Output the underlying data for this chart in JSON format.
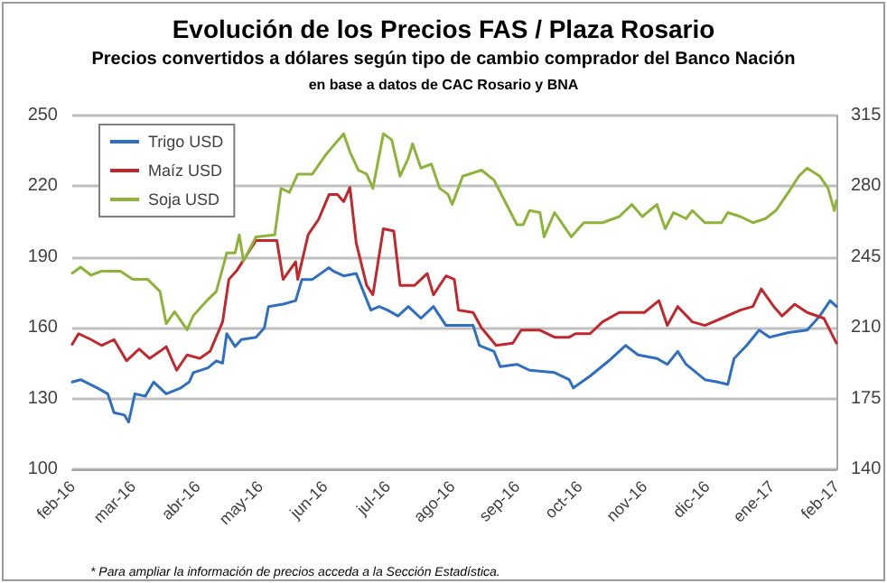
{
  "chart_data": {
    "type": "line",
    "title": "Evolución de los Precios FAS / Plaza Rosario",
    "subtitle": "Precios convertidos a dólares según tipo de cambio comprador del Banco Nación",
    "annotations": [
      "en base a datos de CAC Rosario y BNA",
      "* Para ampliar la información de precios acceda a la Sección Estadística."
    ],
    "xlim": [
      "2016-02-01",
      "2017-02-01"
    ],
    "xticks": [
      {
        "value": "2016-02-01",
        "label": "feb-16"
      },
      {
        "value": "2016-03-01",
        "label": "mar-16"
      },
      {
        "value": "2016-04-01",
        "label": "abr-16"
      },
      {
        "value": "2016-05-01",
        "label": "may-16"
      },
      {
        "value": "2016-06-01",
        "label": "jun-16"
      },
      {
        "value": "2016-07-01",
        "label": "jul-16"
      },
      {
        "value": "2016-08-01",
        "label": "ago-16"
      },
      {
        "value": "2016-09-01",
        "label": "sep-16"
      },
      {
        "value": "2016-10-01",
        "label": "oct-16"
      },
      {
        "value": "2016-11-01",
        "label": "nov-16"
      },
      {
        "value": "2016-12-01",
        "label": "dic-16"
      },
      {
        "value": "2017-01-01",
        "label": "ene-17"
      },
      {
        "value": "2017-02-01",
        "label": "feb-17"
      }
    ],
    "ylim": [
      100,
      250
    ],
    "yticks": [
      100,
      130,
      160,
      190,
      220,
      250
    ],
    "y2lim": [
      140,
      315
    ],
    "y2ticks": [
      140,
      175,
      210,
      245,
      280,
      315
    ],
    "grid": "y",
    "legend": "top left",
    "marker": "none",
    "line_style": "solid",
    "series": [
      {
        "name": "Trigo USD",
        "color": "#2e6fbf",
        "x": [
          "2016-02-01",
          "2016-02-05",
          "2016-02-13",
          "2016-02-18",
          "2016-02-21",
          "2016-02-26",
          "2016-02-28",
          "2016-03-02",
          "2016-03-07",
          "2016-03-11",
          "2016-03-17",
          "2016-03-24",
          "2016-03-28",
          "2016-03-30",
          "2016-04-06",
          "2016-04-10",
          "2016-04-13",
          "2016-04-15",
          "2016-04-19",
          "2016-04-22",
          "2016-04-29",
          "2016-05-03",
          "2016-05-05",
          "2016-05-12",
          "2016-05-18",
          "2016-05-21",
          "2016-05-26",
          "2016-06-03",
          "2016-06-05",
          "2016-06-10",
          "2016-06-16",
          "2016-06-23",
          "2016-06-27",
          "2016-07-01",
          "2016-07-06",
          "2016-07-11",
          "2016-07-17",
          "2016-07-23",
          "2016-07-29",
          "2016-08-04",
          "2016-08-11",
          "2016-08-14",
          "2016-08-21",
          "2016-08-24",
          "2016-09-01",
          "2016-09-07",
          "2016-09-19",
          "2016-09-26",
          "2016-09-28",
          "2016-10-06",
          "2016-10-15",
          "2016-10-23",
          "2016-10-29",
          "2016-11-07",
          "2016-11-12",
          "2016-11-17",
          "2016-11-21",
          "2016-11-30",
          "2016-12-06",
          "2016-12-11",
          "2016-12-14",
          "2016-12-20",
          "2016-12-26",
          "2016-12-31",
          "2017-01-09",
          "2017-01-18",
          "2017-01-24",
          "2017-01-29",
          "2017-02-01"
        ],
        "values": [
          137,
          138,
          134.5,
          132,
          124,
          123,
          120,
          132,
          131,
          137,
          132,
          134.5,
          137,
          141,
          143,
          146,
          145,
          157.5,
          152,
          155,
          156,
          160,
          169,
          170,
          171.5,
          180.5,
          180.5,
          185.5,
          184,
          182,
          183,
          167.5,
          169,
          167.5,
          165,
          169,
          164,
          169,
          161,
          161,
          161,
          152.5,
          150,
          143.5,
          144.5,
          142,
          141,
          138,
          134.5,
          139.5,
          146,
          152.5,
          148.5,
          147,
          144.5,
          150,
          144.5,
          138,
          137,
          136,
          147,
          152.5,
          159,
          156,
          158,
          159,
          165,
          171.5,
          169
        ]
      },
      {
        "name": "Maíz USD",
        "color": "#c0282d",
        "x": [
          "2016-02-01",
          "2016-02-04",
          "2016-02-10",
          "2016-02-15",
          "2016-02-21",
          "2016-02-27",
          "2016-03-04",
          "2016-03-09",
          "2016-03-14",
          "2016-03-17",
          "2016-03-22",
          "2016-03-27",
          "2016-04-02",
          "2016-04-07",
          "2016-04-13",
          "2016-04-16",
          "2016-04-20",
          "2016-04-29",
          "2016-05-09",
          "2016-05-12",
          "2016-05-18",
          "2016-05-19",
          "2016-05-24",
          "2016-05-29",
          "2016-06-03",
          "2016-06-07",
          "2016-06-10",
          "2016-06-13",
          "2016-06-16",
          "2016-06-21",
          "2016-06-24",
          "2016-06-29",
          "2016-07-04",
          "2016-07-07",
          "2016-07-14",
          "2016-07-20",
          "2016-07-23",
          "2016-07-29",
          "2016-08-02",
          "2016-08-04",
          "2016-08-11",
          "2016-08-15",
          "2016-08-22",
          "2016-08-30",
          "2016-09-03",
          "2016-09-12",
          "2016-09-19",
          "2016-09-26",
          "2016-09-29",
          "2016-10-06",
          "2016-10-12",
          "2016-10-20",
          "2016-11-01",
          "2016-11-08",
          "2016-11-12",
          "2016-11-17",
          "2016-11-24",
          "2016-11-30",
          "2016-12-08",
          "2016-12-17",
          "2016-12-23",
          "2016-12-27",
          "2017-01-02",
          "2017-01-06",
          "2017-01-12",
          "2017-01-18",
          "2017-01-26",
          "2017-02-01"
        ],
        "values": [
          153,
          157.5,
          155,
          152.5,
          155,
          146,
          151,
          147,
          150,
          152,
          142,
          148.5,
          147,
          150,
          162.5,
          180.5,
          184.5,
          197,
          197,
          180.5,
          188,
          180.5,
          199.5,
          206,
          216.5,
          216.5,
          213.5,
          219.5,
          196,
          178,
          174,
          202,
          201,
          178,
          178,
          183,
          174,
          182,
          180.5,
          167.5,
          166.5,
          160,
          152.5,
          153.5,
          159,
          159,
          156,
          156,
          157.5,
          157.5,
          162.5,
          166.5,
          166.5,
          171.5,
          161,
          169,
          162.5,
          161,
          164,
          167.5,
          169,
          176.5,
          169,
          165,
          170,
          166.5,
          164,
          153.5
        ]
      },
      {
        "name": "Soja USD",
        "color": "#8db33a",
        "axis": "y2",
        "x": [
          "2016-02-01",
          "2016-02-05",
          "2016-02-10",
          "2016-02-15",
          "2016-02-24",
          "2016-03-01",
          "2016-03-08",
          "2016-03-14",
          "2016-03-17",
          "2016-03-21",
          "2016-03-27",
          "2016-03-30",
          "2016-04-06",
          "2016-04-10",
          "2016-04-15",
          "2016-04-19",
          "2016-04-21",
          "2016-04-23",
          "2016-04-29",
          "2016-05-08",
          "2016-05-11",
          "2016-05-15",
          "2016-05-19",
          "2016-05-26",
          "2016-06-01",
          "2016-06-05",
          "2016-06-10",
          "2016-06-13",
          "2016-06-17",
          "2016-06-21",
          "2016-06-24",
          "2016-06-29",
          "2016-07-03",
          "2016-07-07",
          "2016-07-11",
          "2016-07-13",
          "2016-07-17",
          "2016-07-22",
          "2016-07-26",
          "2016-07-30",
          "2016-08-01",
          "2016-08-06",
          "2016-08-15",
          "2016-08-21",
          "2016-08-27",
          "2016-09-01",
          "2016-09-04",
          "2016-09-07",
          "2016-09-12",
          "2016-09-14",
          "2016-09-19",
          "2016-09-23",
          "2016-09-27",
          "2016-10-03",
          "2016-10-12",
          "2016-10-20",
          "2016-10-26",
          "2016-10-31",
          "2016-11-07",
          "2016-11-11",
          "2016-11-15",
          "2016-11-21",
          "2016-11-24",
          "2016-11-30",
          "2016-12-08",
          "2016-12-11",
          "2016-12-17",
          "2016-12-23",
          "2016-12-29",
          "2017-01-03",
          "2017-01-09",
          "2017-01-14",
          "2017-01-18",
          "2017-01-24",
          "2017-01-28",
          "2017-01-31",
          "2017-02-01"
        ],
        "values": [
          237,
          240,
          236,
          238,
          238,
          234,
          234,
          228,
          212,
          218,
          209,
          216,
          224,
          228,
          247,
          247,
          256,
          243,
          255,
          256,
          279,
          277,
          286,
          286,
          295,
          300,
          306,
          297,
          288,
          286,
          279,
          306,
          303,
          285,
          294,
          301,
          289,
          291,
          279,
          276,
          271,
          285,
          288,
          283,
          271,
          261,
          261,
          268,
          267,
          255,
          267,
          261,
          255,
          262,
          262,
          265,
          271,
          265,
          271,
          259,
          267,
          264,
          268,
          262,
          262,
          267,
          265,
          262,
          264,
          268,
          277,
          285,
          289,
          285,
          279,
          268,
          273
        ]
      }
    ]
  }
}
